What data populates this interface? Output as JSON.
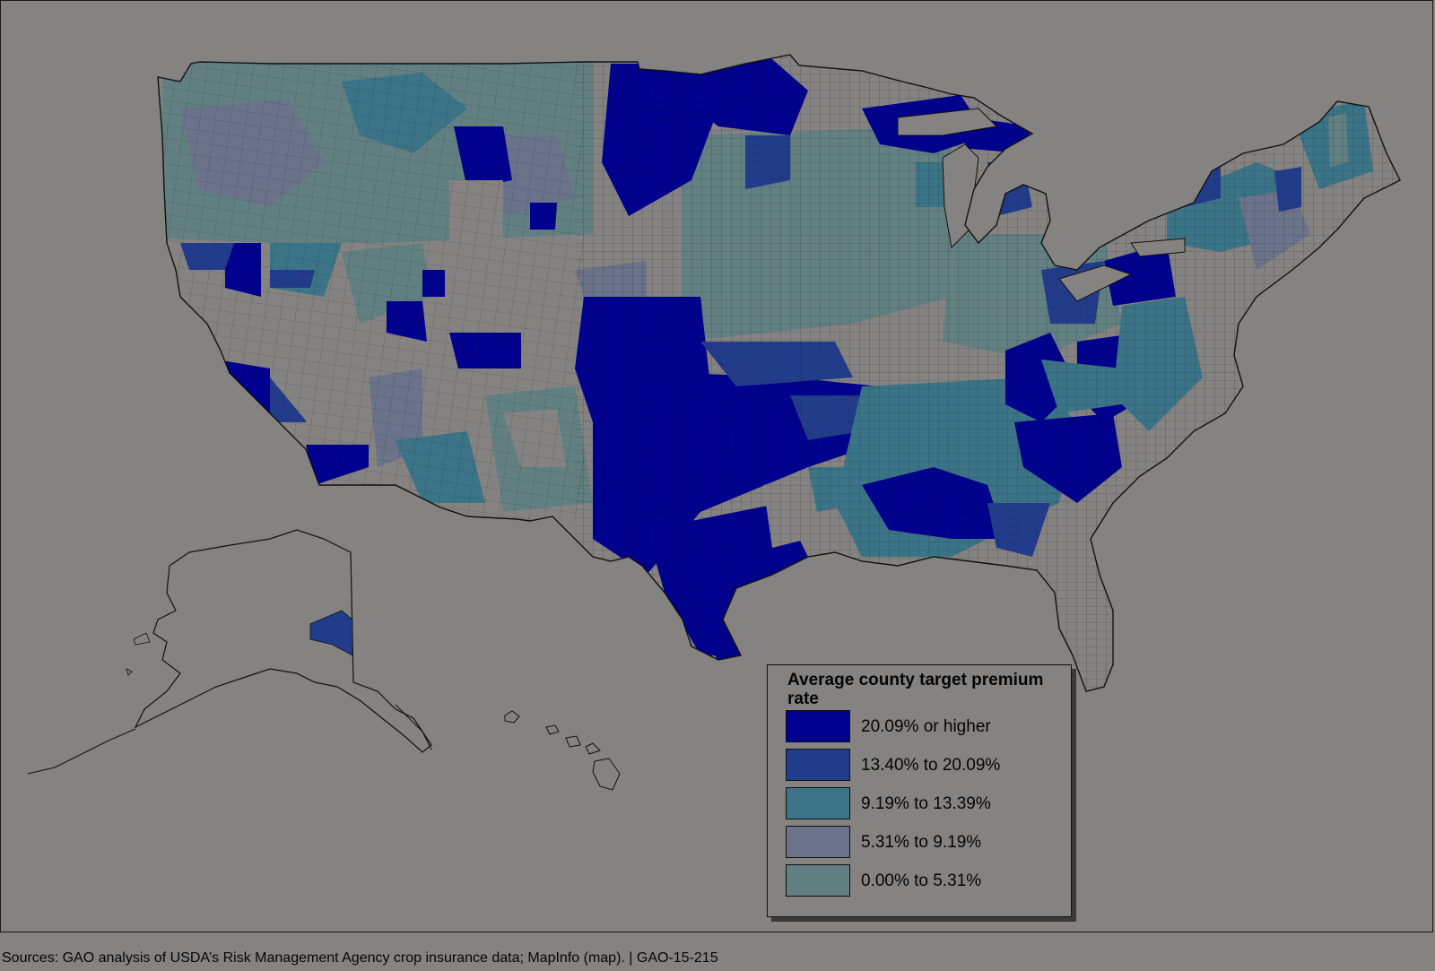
{
  "legend": {
    "title": "Average county target premium rate",
    "items": [
      {
        "label": "20.09% or higher",
        "color": "#00008f"
      },
      {
        "label": "13.40% to 20.09%",
        "color": "#223c8c"
      },
      {
        "label": "9.19% to 13.39%",
        "color": "#3b7487"
      },
      {
        "label": "5.31% to 9.19%",
        "color": "#6a7389"
      },
      {
        "label": "0.00% to 5.31%",
        "color": "#628081"
      }
    ]
  },
  "source": "Sources: GAO analysis of USDA’s Risk Management Agency crop insurance data; MapInfo (map).  | GAO-15-215",
  "colors": {
    "background": "#858381",
    "no_data": "#858381",
    "outline": "#111111"
  }
}
